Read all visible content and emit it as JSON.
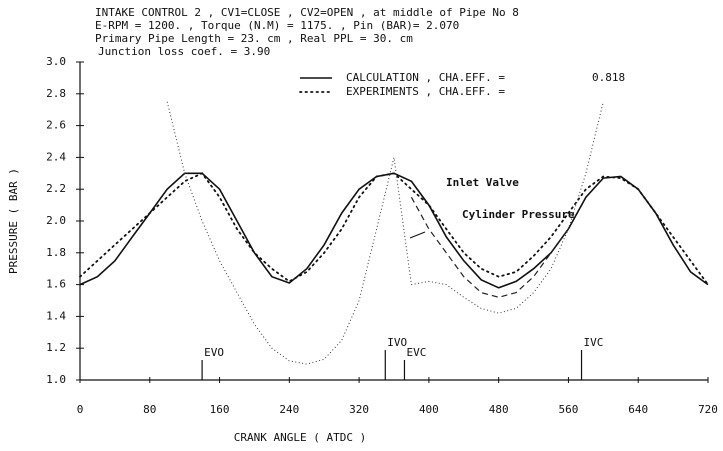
{
  "chart_data": {
    "type": "line",
    "title_lines": [
      "INTAKE CONTROL 2 , CV1=CLOSE , CV2=OPEN , at middle of Pipe No 8",
      "E-RPM = 1200. , Torque (N.M) = 1175. , Pin (BAR)= 2.070",
      "Primary Pipe Length = 23. cm , Real PPL = 30. cm",
      "Junction loss coef. = 3.90"
    ],
    "x_label": "CRANK ANGLE ( ATDC )",
    "y_label": "PRESSURE ( BAR )",
    "xlim": [
      0,
      720
    ],
    "ylim": [
      1.0,
      3.0
    ],
    "xticks": [
      0,
      80,
      160,
      240,
      320,
      400,
      480,
      560,
      640,
      720
    ],
    "yticks": [
      {
        "value": 1.0,
        "label": "1.0"
      },
      1.2,
      1.4,
      1.6,
      1.8,
      {
        "value": 2.0,
        "label": "2.0"
      },
      2.2,
      2.4,
      2.6,
      2.8,
      {
        "value": 3.0,
        "label": "3.0"
      }
    ],
    "x": [
      0,
      20,
      40,
      60,
      80,
      100,
      120,
      140,
      160,
      180,
      200,
      220,
      240,
      260,
      280,
      300,
      320,
      340,
      360,
      380,
      400,
      420,
      440,
      460,
      480,
      500,
      520,
      540,
      560,
      580,
      600,
      620,
      640,
      660,
      680,
      700,
      720
    ],
    "series": [
      {
        "name": "CALCULATION , CHA.EFF. =",
        "legend_value": "0.818",
        "color": "#111111",
        "style": "solid",
        "values": [
          1.6,
          1.65,
          1.75,
          1.9,
          2.05,
          2.2,
          2.3,
          2.3,
          2.2,
          2.0,
          1.8,
          1.65,
          1.61,
          1.7,
          1.85,
          2.05,
          2.2,
          2.28,
          2.3,
          2.25,
          2.1,
          1.9,
          1.75,
          1.63,
          1.58,
          1.62,
          1.7,
          1.8,
          1.95,
          2.15,
          2.27,
          2.28,
          2.2,
          2.05,
          1.85,
          1.68,
          1.6
        ]
      },
      {
        "name": "EXPERIMENTS , CHA.EFF. =",
        "color": "#111111",
        "style": "dotted",
        "values": [
          1.65,
          1.75,
          1.85,
          1.95,
          2.05,
          2.15,
          2.25,
          2.3,
          2.15,
          1.95,
          1.8,
          1.7,
          1.62,
          1.68,
          1.8,
          1.95,
          2.15,
          2.28,
          2.3,
          2.2,
          2.1,
          1.95,
          1.8,
          1.7,
          1.65,
          1.68,
          1.78,
          1.9,
          2.05,
          2.2,
          2.28,
          2.27,
          2.2,
          2.05,
          1.9,
          1.75,
          1.6
        ]
      },
      {
        "name": "Cylinder Pressure",
        "color": "#333333",
        "style": "thin-dotted",
        "values": [
          null,
          null,
          null,
          null,
          null,
          2.75,
          2.3,
          2.0,
          1.75,
          1.55,
          1.35,
          1.2,
          1.12,
          1.1,
          1.13,
          1.25,
          1.5,
          1.95,
          2.4,
          1.6,
          1.62,
          1.6,
          1.52,
          1.45,
          1.42,
          1.45,
          1.55,
          1.7,
          1.95,
          2.3,
          2.75,
          null,
          null,
          null,
          null,
          null,
          null
        ]
      },
      {
        "name": "Inlet Valve",
        "color": "#222222",
        "style": "dashed",
        "values": [
          null,
          null,
          null,
          null,
          null,
          null,
          null,
          null,
          null,
          null,
          null,
          null,
          null,
          null,
          null,
          null,
          null,
          null,
          null,
          2.15,
          1.95,
          1.8,
          1.65,
          1.55,
          1.52,
          1.55,
          1.65,
          1.8,
          1.95,
          null,
          null,
          null,
          null,
          null,
          null,
          null,
          null
        ]
      }
    ],
    "events": [
      {
        "label": "EVO",
        "x": 140
      },
      {
        "label": "IVO",
        "x": 350
      },
      {
        "label": "EVC",
        "x": 372
      },
      {
        "label": "IVC",
        "x": 575
      }
    ]
  }
}
